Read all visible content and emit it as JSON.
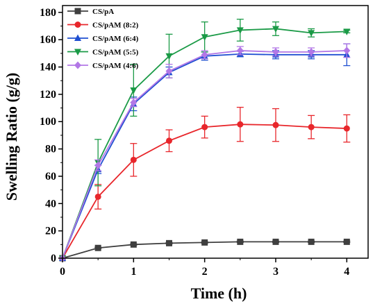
{
  "chart_data": {
    "type": "line",
    "xlabel": "Time (h)",
    "ylabel": "Swelling Ratio (g/g)",
    "xlim": [
      0,
      4.3
    ],
    "ylim": [
      0,
      185
    ],
    "x_ticks": [
      0,
      1,
      2,
      3,
      4
    ],
    "y_ticks": [
      0,
      20,
      40,
      60,
      80,
      100,
      120,
      140,
      160,
      180
    ],
    "x": [
      0,
      0.5,
      1,
      1.5,
      2,
      2.5,
      3,
      3.5,
      4
    ],
    "legend_position": "top-left",
    "grid": false,
    "series": [
      {
        "name": "CS/pA",
        "color": "#3f3f3f",
        "marker": "square",
        "values": [
          0,
          7.5,
          10,
          11,
          11.5,
          12,
          12,
          12,
          12
        ],
        "errors": [
          0,
          0.5,
          0.5,
          0.5,
          0.5,
          0.5,
          0.5,
          0.5,
          0.5
        ]
      },
      {
        "name": "CS/pAM (8:2)",
        "color": "#e8262b",
        "marker": "circle",
        "values": [
          0,
          45,
          72,
          86,
          96,
          98,
          97.5,
          96,
          95
        ],
        "errors": [
          0,
          9,
          12,
          8,
          8,
          12.5,
          12,
          8.5,
          10
        ]
      },
      {
        "name": "CS/pAM (6:4)",
        "color": "#1f4fd1",
        "marker": "triangle-up",
        "values": [
          0,
          65,
          113,
          136,
          148,
          149.5,
          149,
          149,
          149
        ],
        "errors": [
          0,
          3,
          5,
          4,
          3,
          2,
          3,
          3,
          8
        ]
      },
      {
        "name": "CS/pAM (5:5)",
        "color": "#1a9a46",
        "marker": "triangle-down",
        "values": [
          0,
          70,
          123,
          148,
          162,
          167,
          168,
          165,
          166
        ],
        "errors": [
          0,
          17,
          19,
          16,
          11,
          8,
          5,
          3,
          1
        ]
      },
      {
        "name": "CS/pAM (4:6)",
        "color": "#b277e6",
        "marker": "diamond",
        "values": [
          0,
          68,
          114,
          137,
          149,
          152,
          151,
          151,
          152
        ],
        "errors": [
          0,
          4,
          3,
          5,
          3,
          3,
          3,
          3,
          5
        ]
      }
    ]
  }
}
